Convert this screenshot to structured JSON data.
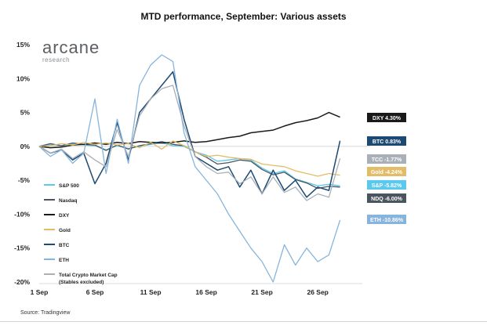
{
  "header": {
    "title": "MTD performance, September: Various assets"
  },
  "logo": {
    "main": "arcane",
    "sub": "research"
  },
  "footer": {
    "source": "Source: Tradingview"
  },
  "chart_data": {
    "type": "line",
    "title": "MTD performance, September: Various assets",
    "xlabel": "",
    "ylabel": "",
    "ylim": [
      -20,
      15
    ],
    "xlim": [
      1,
      30
    ],
    "x_ticks": [
      {
        "day": 1,
        "label": "1 Sep"
      },
      {
        "day": 6,
        "label": "6 Sep"
      },
      {
        "day": 11,
        "label": "11 Sep"
      },
      {
        "day": 16,
        "label": "16 Sep"
      },
      {
        "day": 21,
        "label": "21 Sep"
      },
      {
        "day": 26,
        "label": "26 Sep"
      }
    ],
    "y_ticks": [
      {
        "value": 15,
        "label": "15%"
      },
      {
        "value": 10,
        "label": "10%"
      },
      {
        "value": 5,
        "label": "5%"
      },
      {
        "value": 0,
        "label": "0%"
      },
      {
        "value": -5,
        "label": "-5%"
      },
      {
        "value": -10,
        "label": "-10%"
      },
      {
        "value": -15,
        "label": "-15%"
      },
      {
        "value": -20,
        "label": "-20%"
      }
    ],
    "grid": false,
    "legend_position": "left",
    "series": [
      {
        "name": "S&P 500",
        "color": "#5bc8ee",
        "width": 1.3,
        "end_label": "S&P -5.82%",
        "end_value": -5.82,
        "points": [
          [
            1,
            0
          ],
          [
            2,
            0.3
          ],
          [
            3,
            0.1
          ],
          [
            4,
            0.4
          ],
          [
            5,
            0.2
          ],
          [
            6,
            0.1
          ],
          [
            7,
            -0.5
          ],
          [
            8,
            0.1
          ],
          [
            9,
            -0.3
          ],
          [
            10,
            0
          ],
          [
            11,
            0.3
          ],
          [
            12,
            0.5
          ],
          [
            13,
            0.1
          ],
          [
            14,
            0
          ],
          [
            15,
            -0.8
          ],
          [
            16,
            -1.3
          ],
          [
            17,
            -2.2
          ],
          [
            18,
            -2.0
          ],
          [
            19,
            -1.8
          ],
          [
            20,
            -2.0
          ],
          [
            21,
            -3.2
          ],
          [
            22,
            -4.0
          ],
          [
            23,
            -3.6
          ],
          [
            24,
            -4.8
          ],
          [
            25,
            -5.3
          ],
          [
            26,
            -5.8
          ],
          [
            27,
            -5.6
          ],
          [
            28,
            -5.82
          ]
        ]
      },
      {
        "name": "Nasdaq",
        "color": "#4a5560",
        "width": 1.3,
        "end_label": "NDQ -6.00%",
        "end_value": -6.0,
        "points": [
          [
            1,
            0
          ],
          [
            2,
            0.4
          ],
          [
            3,
            0.1
          ],
          [
            4,
            0.5
          ],
          [
            5,
            0.3
          ],
          [
            6,
            0.2
          ],
          [
            7,
            -0.6
          ],
          [
            8,
            0.2
          ],
          [
            9,
            -0.4
          ],
          [
            10,
            0.1
          ],
          [
            11,
            0.4
          ],
          [
            12,
            0.7
          ],
          [
            13,
            0.3
          ],
          [
            14,
            0.1
          ],
          [
            15,
            -0.8
          ],
          [
            16,
            -1.6
          ],
          [
            17,
            -2.6
          ],
          [
            18,
            -2.4
          ],
          [
            19,
            -2.0
          ],
          [
            20,
            -2.2
          ],
          [
            21,
            -3.4
          ],
          [
            22,
            -4.2
          ],
          [
            23,
            -3.8
          ],
          [
            24,
            -4.9
          ],
          [
            25,
            -5.4
          ],
          [
            26,
            -6.2
          ],
          [
            27,
            -5.9
          ],
          [
            28,
            -6.0
          ]
        ]
      },
      {
        "name": "DXY",
        "color": "#1a1a1a",
        "width": 1.5,
        "end_label": "DXY 4.30%",
        "end_value": 4.3,
        "points": [
          [
            1,
            0
          ],
          [
            2,
            -0.2
          ],
          [
            3,
            -0.1
          ],
          [
            4,
            0.2
          ],
          [
            5,
            0.3
          ],
          [
            6,
            0.5
          ],
          [
            7,
            0.3
          ],
          [
            8,
            0.6
          ],
          [
            9,
            0.4
          ],
          [
            10,
            0.7
          ],
          [
            11,
            0.6
          ],
          [
            12,
            0.5
          ],
          [
            13,
            0.6
          ],
          [
            14,
            0.8
          ],
          [
            15,
            0.6
          ],
          [
            16,
            0.7
          ],
          [
            17,
            1.0
          ],
          [
            18,
            1.3
          ],
          [
            19,
            1.5
          ],
          [
            20,
            2.0
          ],
          [
            21,
            2.2
          ],
          [
            22,
            2.4
          ],
          [
            23,
            3.0
          ],
          [
            24,
            3.5
          ],
          [
            25,
            3.8
          ],
          [
            26,
            4.2
          ],
          [
            27,
            5.0
          ],
          [
            28,
            4.3
          ]
        ]
      },
      {
        "name": "Gold",
        "color": "#e3bc68",
        "width": 1.3,
        "end_label": "Gold -4.24%",
        "end_value": -4.24,
        "points": [
          [
            1,
            0
          ],
          [
            2,
            0.1
          ],
          [
            3,
            0.4
          ],
          [
            4,
            0.2
          ],
          [
            5,
            0.6
          ],
          [
            6,
            0.3
          ],
          [
            7,
            0.5
          ],
          [
            8,
            0.2
          ],
          [
            9,
            0.4
          ],
          [
            10,
            -0.2
          ],
          [
            11,
            0.6
          ],
          [
            12,
            -0.4
          ],
          [
            13,
            0.8
          ],
          [
            14,
            0.1
          ],
          [
            15,
            -0.8
          ],
          [
            16,
            -1.5
          ],
          [
            17,
            -1.3
          ],
          [
            18,
            -1.6
          ],
          [
            19,
            -1.8
          ],
          [
            20,
            -1.9
          ],
          [
            21,
            -2.6
          ],
          [
            22,
            -2.8
          ],
          [
            23,
            -3.0
          ],
          [
            24,
            -3.6
          ],
          [
            25,
            -4.0
          ],
          [
            26,
            -4.4
          ],
          [
            27,
            -4.0
          ],
          [
            28,
            -4.24
          ]
        ]
      },
      {
        "name": "BTC",
        "color": "#1d4a73",
        "width": 1.5,
        "end_label": "BTC 0.83%",
        "end_value": 0.83,
        "points": [
          [
            1,
            0
          ],
          [
            2,
            -1.0
          ],
          [
            3,
            -0.5
          ],
          [
            4,
            -2.0
          ],
          [
            5,
            -1.0
          ],
          [
            6,
            -5.5
          ],
          [
            7,
            -2.5
          ],
          [
            8,
            3.5
          ],
          [
            9,
            -2.0
          ],
          [
            10,
            5.0
          ],
          [
            11,
            7.0
          ],
          [
            12,
            9.0
          ],
          [
            13,
            11.0
          ],
          [
            14,
            4.0
          ],
          [
            15,
            -1.5
          ],
          [
            16,
            -2.5
          ],
          [
            17,
            -3.5
          ],
          [
            18,
            -3.0
          ],
          [
            19,
            -6.0
          ],
          [
            20,
            -3.5
          ],
          [
            21,
            -7.0
          ],
          [
            22,
            -3.5
          ],
          [
            23,
            -6.5
          ],
          [
            24,
            -5.0
          ],
          [
            25,
            -7.5
          ],
          [
            26,
            -6.0
          ],
          [
            27,
            -6.5
          ],
          [
            28,
            0.83
          ]
        ]
      },
      {
        "name": "ETH",
        "color": "#86b4dc",
        "width": 1.3,
        "end_label": "ETH -10.86%",
        "end_value": -10.86,
        "points": [
          [
            1,
            0
          ],
          [
            2,
            -1.5
          ],
          [
            3,
            -0.5
          ],
          [
            4,
            -2.5
          ],
          [
            5,
            -1.0
          ],
          [
            6,
            7.0
          ],
          [
            7,
            -4.0
          ],
          [
            8,
            4.0
          ],
          [
            9,
            -2.5
          ],
          [
            10,
            9.0
          ],
          [
            11,
            12.0
          ],
          [
            12,
            13.5
          ],
          [
            13,
            12.5
          ],
          [
            14,
            2.0
          ],
          [
            15,
            -3.0
          ],
          [
            16,
            -5.0
          ],
          [
            17,
            -7.0
          ],
          [
            18,
            -10.0
          ],
          [
            19,
            -12.5
          ],
          [
            20,
            -15.0
          ],
          [
            21,
            -17.0
          ],
          [
            22,
            -20.0
          ],
          [
            23,
            -14.5
          ],
          [
            24,
            -17.5
          ],
          [
            25,
            -15.0
          ],
          [
            26,
            -17.0
          ],
          [
            27,
            -16.0
          ],
          [
            28,
            -10.86
          ]
        ]
      },
      {
        "name": "Total Crypto Market Cap (Stables excluded)",
        "color": "#a9b0b8",
        "width": 1.3,
        "end_label": "TCC -1.77%",
        "end_value": -1.77,
        "points": [
          [
            1,
            0
          ],
          [
            2,
            -1.0
          ],
          [
            3,
            -0.4
          ],
          [
            4,
            -1.8
          ],
          [
            5,
            -0.8
          ],
          [
            6,
            -2.0
          ],
          [
            7,
            -3.0
          ],
          [
            8,
            2.5
          ],
          [
            9,
            -1.5
          ],
          [
            10,
            4.5
          ],
          [
            11,
            7.0
          ],
          [
            12,
            8.5
          ],
          [
            13,
            9.0
          ],
          [
            14,
            3.0
          ],
          [
            15,
            -1.5
          ],
          [
            16,
            -3.0
          ],
          [
            17,
            -4.0
          ],
          [
            18,
            -3.8
          ],
          [
            19,
            -5.5
          ],
          [
            20,
            -4.5
          ],
          [
            21,
            -7.0
          ],
          [
            22,
            -4.5
          ],
          [
            23,
            -6.8
          ],
          [
            24,
            -6.0
          ],
          [
            25,
            -8.0
          ],
          [
            26,
            -7.0
          ],
          [
            27,
            -7.5
          ],
          [
            28,
            -1.77
          ]
        ]
      }
    ],
    "legend": [
      {
        "series": "S&P 500",
        "label": "S&P 500"
      },
      {
        "series": "Nasdaq",
        "label": "Nasdaq"
      },
      {
        "series": "DXY",
        "label": "DXY"
      },
      {
        "series": "Gold",
        "label": "Gold"
      },
      {
        "series": "BTC",
        "label": "BTC"
      },
      {
        "series": "ETH",
        "label": "ETH"
      },
      {
        "series": "Total Crypto Market Cap (Stables excluded)",
        "label": "Total Crypto Market Cap",
        "label2": "(Stables excluded)"
      }
    ],
    "end_label_order": [
      "DXY",
      "BTC",
      "Total Crypto Market Cap (Stables excluded)",
      "Gold",
      "S&P 500",
      "Nasdaq",
      "ETH"
    ]
  }
}
